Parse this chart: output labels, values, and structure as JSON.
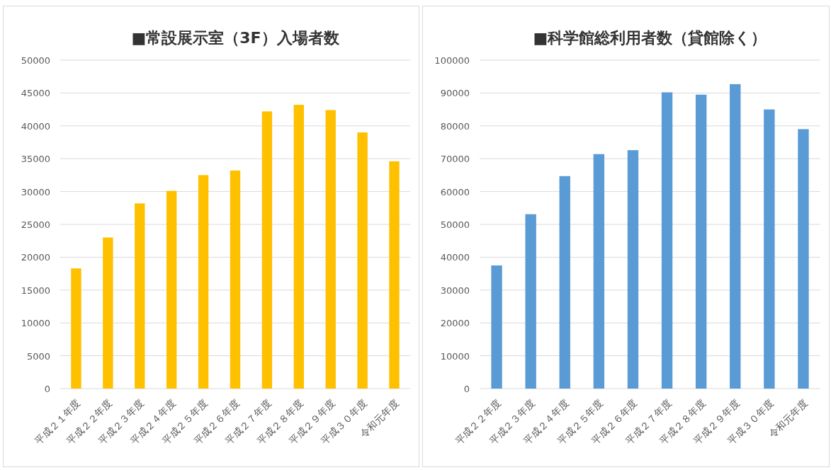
{
  "chart_data": [
    {
      "type": "bar",
      "title": "■常設展示室（3F）入場者数",
      "categories": [
        "平成２１年度",
        "平成２２年度",
        "平成２３年度",
        "平成２４年度",
        "平成２５年度",
        "平成２６年度",
        "平成２７年度",
        "平成２８年度",
        "平成２９年度",
        "平成３０年度",
        "令和元年度"
      ],
      "series": [
        {
          "color": "#ffc000",
          "values": [
            18300,
            23000,
            28200,
            30100,
            32500,
            33200,
            42200,
            43200,
            42400,
            39000,
            34600
          ]
        }
      ],
      "ylim": [
        0,
        50000
      ],
      "yticks": [
        0,
        5000,
        10000,
        15000,
        20000,
        25000,
        30000,
        35000,
        40000,
        45000,
        50000
      ],
      "grid": "y"
    },
    {
      "type": "bar",
      "title": "■科学館総利用者数（貸館除く）",
      "categories": [
        "平成２２年度",
        "平成２３年度",
        "平成２４年度",
        "平成２５年度",
        "平成２６年度",
        "平成２７年度",
        "平成２８年度",
        "平成２９年度",
        "平成３０年度",
        "令和元年度"
      ],
      "series": [
        {
          "color": "#5b9bd5",
          "values": [
            37500,
            53100,
            64700,
            71400,
            72600,
            90200,
            89500,
            92700,
            85000,
            79000
          ]
        }
      ],
      "ylim": [
        0,
        100000
      ],
      "yticks": [
        0,
        10000,
        20000,
        30000,
        40000,
        50000,
        60000,
        70000,
        80000,
        90000,
        100000
      ],
      "grid": "y"
    }
  ]
}
